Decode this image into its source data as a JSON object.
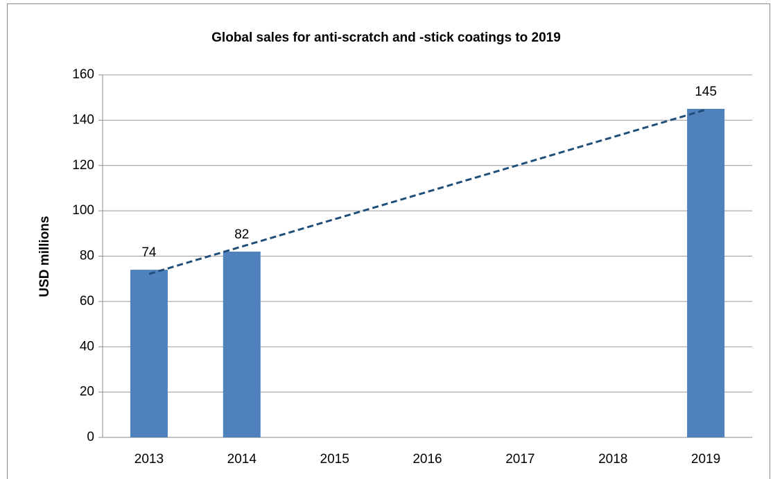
{
  "chart_data": {
    "type": "bar",
    "title": "Global sales for anti-scratch and -stick coatings to 2019",
    "ylabel": "USD millions",
    "categories": [
      "2013",
      "2014",
      "2015",
      "2016",
      "2017",
      "2018",
      "2019"
    ],
    "values": [
      74,
      82,
      null,
      null,
      null,
      null,
      145
    ],
    "color": "#4f81bd",
    "ylim": [
      0,
      160
    ],
    "yticks": [
      0,
      20,
      40,
      60,
      80,
      100,
      120,
      140,
      160
    ],
    "grid": true,
    "data_labels": true,
    "trendline": {
      "type": "linear",
      "style": "dashed",
      "color": "#1f4e79"
    }
  }
}
